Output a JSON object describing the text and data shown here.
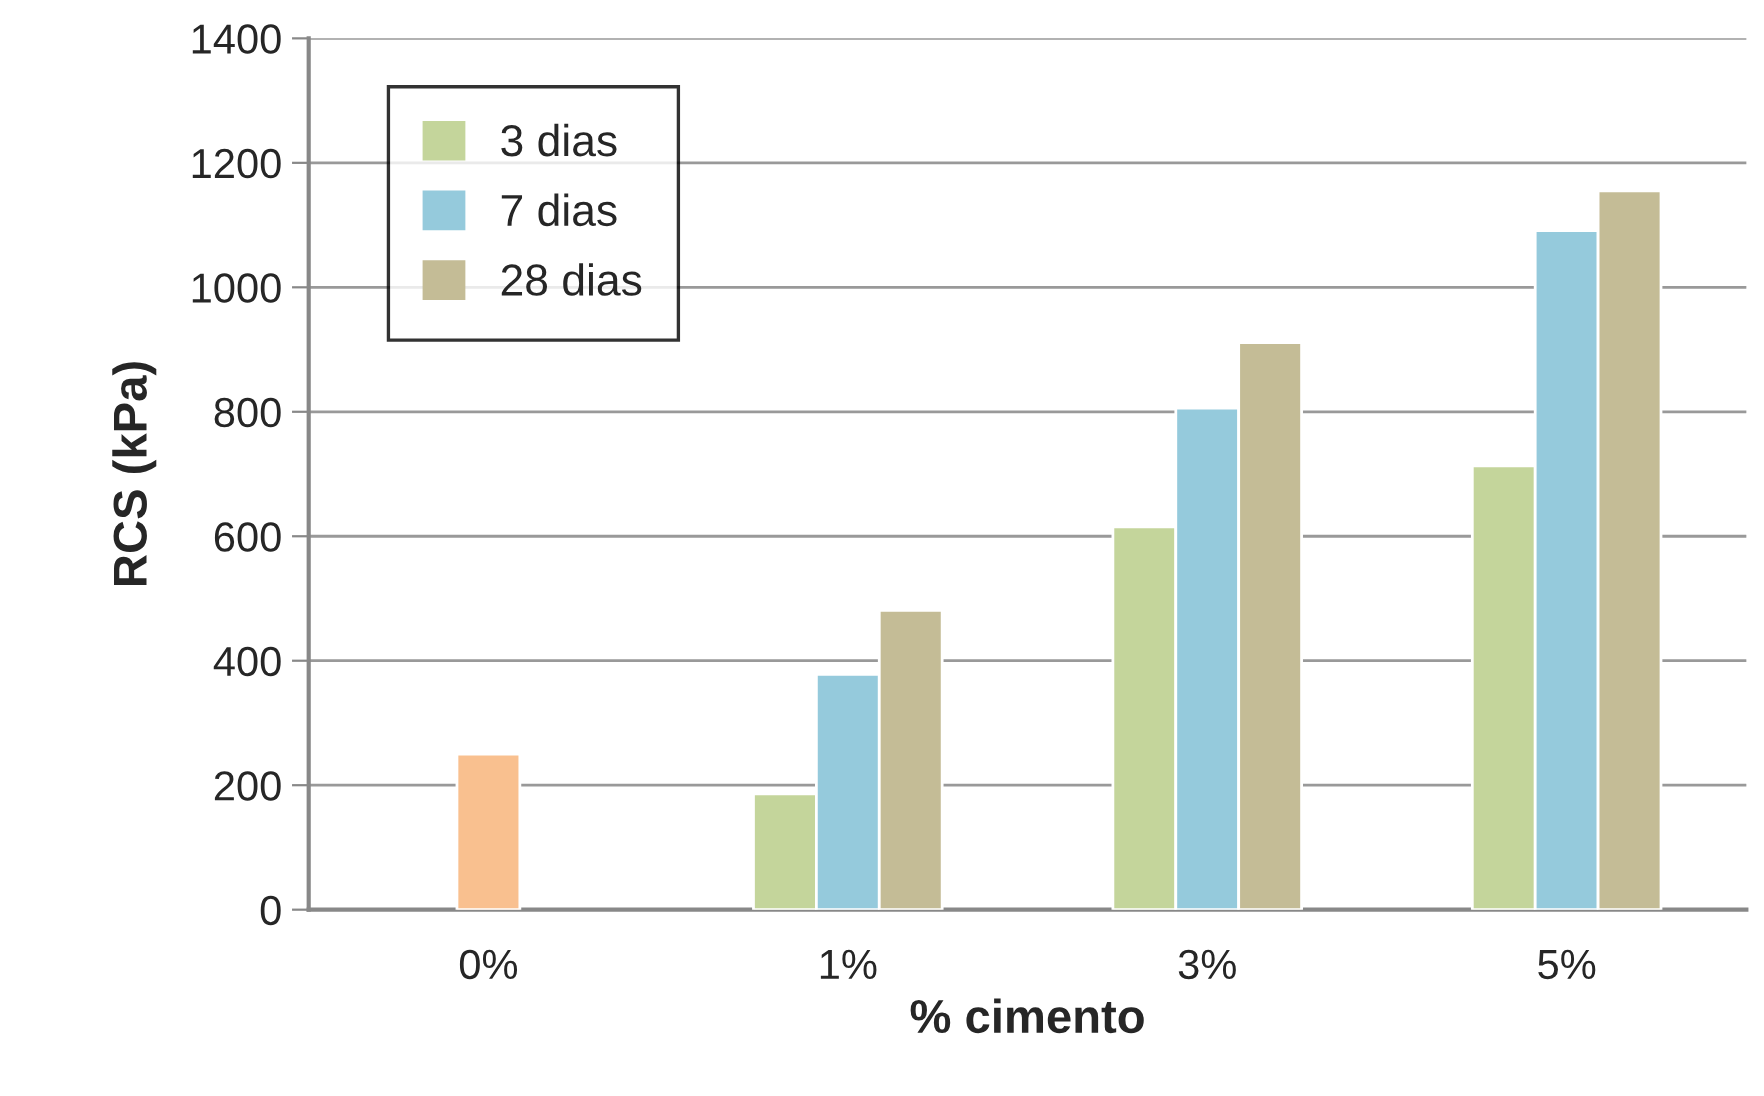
{
  "chart_data": {
    "type": "bar",
    "xlabel": "% cimento",
    "ylabel": "RCS (kPa)",
    "categories": [
      "0%",
      "1%",
      "3%",
      "5%"
    ],
    "series": [
      {
        "color": "#f9c08f",
        "values": [
          250,
          null,
          null,
          null
        ]
      },
      {
        "name": "3 dias",
        "color": "#c4d59b",
        "values": [
          null,
          186,
          615,
          713
        ]
      },
      {
        "name": "7 dias",
        "color": "#95cadc",
        "values": [
          null,
          378,
          806,
          1091
        ]
      },
      {
        "name": "28 dias",
        "color": "#c4bc96",
        "values": [
          null,
          481,
          911,
          1155
        ]
      }
    ],
    "ylim": [
      0,
      1400
    ],
    "yticks": [
      0,
      200,
      400,
      600,
      800,
      1000,
      1200,
      1400
    ],
    "grid": "y",
    "legend": "top left"
  }
}
